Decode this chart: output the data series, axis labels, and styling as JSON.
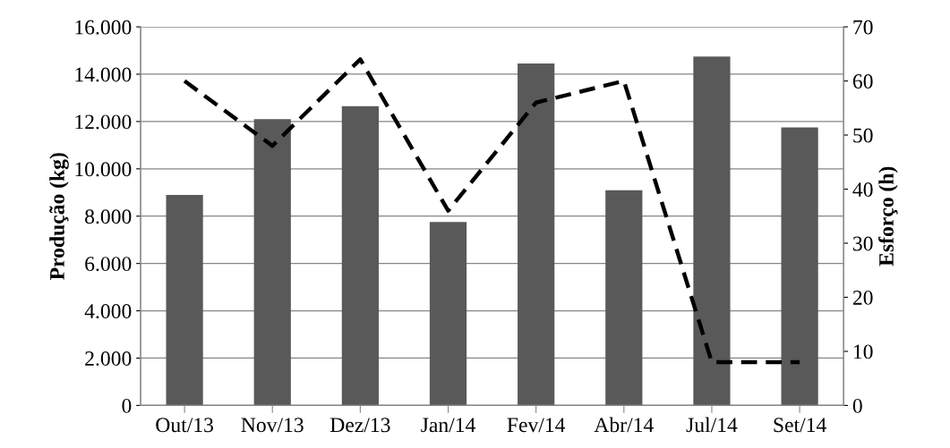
{
  "chart_data": {
    "type": "bar",
    "ylabel": "Produção (kg)",
    "y2label": "Esforço (h)",
    "categories": [
      "Out/13",
      "Nov/13",
      "Dez/13",
      "Jan/14",
      "Fev/14",
      "Abr/14",
      "Jul/14",
      "Set/14"
    ],
    "series": [
      {
        "color": "#595959",
        "values": [
          8900,
          12100,
          12650,
          7750,
          14450,
          9100,
          14750,
          11750
        ]
      },
      {
        "type": "line",
        "axis": "y2",
        "color": "#000000",
        "line_style": "dashed",
        "values": [
          60,
          48,
          64,
          36,
          56,
          60,
          8,
          8
        ]
      }
    ],
    "ylim": [
      0,
      16000
    ],
    "yticks": [
      {
        "value": 0,
        "label": "0"
      },
      {
        "value": 2000,
        "label": "2.000"
      },
      {
        "value": 4000,
        "label": "4.000"
      },
      {
        "value": 6000,
        "label": "6.000"
      },
      {
        "value": 8000,
        "label": "8.000"
      },
      {
        "value": 10000,
        "label": "10.000"
      },
      {
        "value": 12000,
        "label": "12.000"
      },
      {
        "value": 14000,
        "label": "14.000"
      },
      {
        "value": 16000,
        "label": "16.000"
      }
    ],
    "y2lim": [
      0,
      70
    ],
    "y2ticks": [
      0,
      10,
      20,
      30,
      40,
      50,
      60,
      70
    ],
    "grid": "y",
    "legend": false
  }
}
